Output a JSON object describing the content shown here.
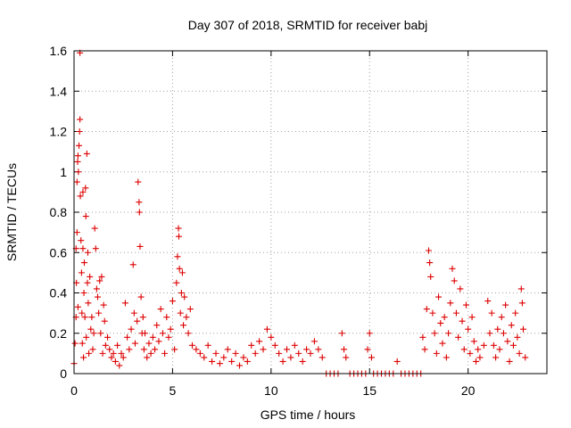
{
  "chart_data": {
    "type": "scatter",
    "title": "Day 307 of 2018, SRMTID for receiver babj",
    "xlabel": "GPS time / hours",
    "ylabel": "SRMTID / TECUs",
    "xlim": [
      0,
      24
    ],
    "ylim": [
      0,
      1.6
    ],
    "xticks": [
      0,
      5,
      10,
      15,
      20
    ],
    "xtick_labels": [
      "0",
      "5",
      "10",
      "15",
      "20"
    ],
    "yticks": [
      0,
      0.2,
      0.4,
      0.6,
      0.8,
      1,
      1.2,
      1.4,
      1.6
    ],
    "ytick_labels": [
      "0",
      "0.2",
      "0.4",
      "0.6",
      "0.8",
      "1",
      "1.2",
      "1.4",
      "1.6"
    ],
    "grid": true,
    "marker": "+",
    "color": "#dd0000",
    "series": [
      {
        "name": "SRMTID",
        "points": [
          [
            0.0,
            0.05
          ],
          [
            0.05,
            0.15
          ],
          [
            0.1,
            0.28
          ],
          [
            0.1,
            0.62
          ],
          [
            0.12,
            0.45
          ],
          [
            0.15,
            0.95
          ],
          [
            0.15,
            0.7
          ],
          [
            0.18,
            1.05
          ],
          [
            0.2,
            1.08
          ],
          [
            0.2,
            0.33
          ],
          [
            0.22,
            1.0
          ],
          [
            0.25,
            1.13
          ],
          [
            0.28,
            1.2
          ],
          [
            0.3,
            1.26
          ],
          [
            0.3,
            1.59
          ],
          [
            0.32,
            0.88
          ],
          [
            0.35,
            0.66
          ],
          [
            0.38,
            0.5
          ],
          [
            0.4,
            0.3
          ],
          [
            0.42,
            0.15
          ],
          [
            0.45,
            0.9
          ],
          [
            0.45,
            0.62
          ],
          [
            0.48,
            0.08
          ],
          [
            0.5,
            0.4
          ],
          [
            0.52,
            0.55
          ],
          [
            0.55,
            0.28
          ],
          [
            0.58,
            0.92
          ],
          [
            0.6,
            0.78
          ],
          [
            0.62,
            0.18
          ],
          [
            0.65,
            1.09
          ],
          [
            0.68,
            0.45
          ],
          [
            0.7,
            0.6
          ],
          [
            0.72,
            0.35
          ],
          [
            0.75,
            0.1
          ],
          [
            0.8,
            0.48
          ],
          [
            0.85,
            0.22
          ],
          [
            0.9,
            0.28
          ],
          [
            0.95,
            0.12
          ],
          [
            1.0,
            0.2
          ],
          [
            1.05,
            0.72
          ],
          [
            1.1,
            0.62
          ],
          [
            1.15,
            0.42
          ],
          [
            1.2,
            0.38
          ],
          [
            1.25,
            0.3
          ],
          [
            1.3,
            0.46
          ],
          [
            1.35,
            0.2
          ],
          [
            1.4,
            0.48
          ],
          [
            1.45,
            0.1
          ],
          [
            1.5,
            0.34
          ],
          [
            1.55,
            0.26
          ],
          [
            1.6,
            0.14
          ],
          [
            1.7,
            0.18
          ],
          [
            1.8,
            0.12
          ],
          [
            1.9,
            0.08
          ],
          [
            2.0,
            0.1
          ],
          [
            2.1,
            0.06
          ],
          [
            2.2,
            0.14
          ],
          [
            2.3,
            0.04
          ],
          [
            2.4,
            0.1
          ],
          [
            2.5,
            0.08
          ],
          [
            2.6,
            0.35
          ],
          [
            2.7,
            0.18
          ],
          [
            2.8,
            0.12
          ],
          [
            2.9,
            0.22
          ],
          [
            3.0,
            0.54
          ],
          [
            3.05,
            0.3
          ],
          [
            3.1,
            0.15
          ],
          [
            3.2,
            0.26
          ],
          [
            3.25,
            0.95
          ],
          [
            3.3,
            0.85
          ],
          [
            3.32,
            0.8
          ],
          [
            3.35,
            0.63
          ],
          [
            3.4,
            0.38
          ],
          [
            3.45,
            0.2
          ],
          [
            3.5,
            0.28
          ],
          [
            3.55,
            0.12
          ],
          [
            3.6,
            0.2
          ],
          [
            3.7,
            0.08
          ],
          [
            3.8,
            0.15
          ],
          [
            3.9,
            0.1
          ],
          [
            4.0,
            0.18
          ],
          [
            4.1,
            0.12
          ],
          [
            4.2,
            0.24
          ],
          [
            4.3,
            0.16
          ],
          [
            4.4,
            0.32
          ],
          [
            4.5,
            0.2
          ],
          [
            4.6,
            0.1
          ],
          [
            4.7,
            0.28
          ],
          [
            4.8,
            0.18
          ],
          [
            4.9,
            0.22
          ],
          [
            5.0,
            0.36
          ],
          [
            5.1,
            0.12
          ],
          [
            5.2,
            0.45
          ],
          [
            5.25,
            0.58
          ],
          [
            5.3,
            0.72
          ],
          [
            5.32,
            0.68
          ],
          [
            5.35,
            0.52
          ],
          [
            5.4,
            0.3
          ],
          [
            5.45,
            0.4
          ],
          [
            5.5,
            0.5
          ],
          [
            5.55,
            0.24
          ],
          [
            5.6,
            0.38
          ],
          [
            5.7,
            0.28
          ],
          [
            5.8,
            0.2
          ],
          [
            5.9,
            0.32
          ],
          [
            6.0,
            0.14
          ],
          [
            6.2,
            0.12
          ],
          [
            6.4,
            0.1
          ],
          [
            6.6,
            0.08
          ],
          [
            6.8,
            0.14
          ],
          [
            7.0,
            0.06
          ],
          [
            7.2,
            0.1
          ],
          [
            7.4,
            0.05
          ],
          [
            7.6,
            0.08
          ],
          [
            7.8,
            0.12
          ],
          [
            8.0,
            0.06
          ],
          [
            8.2,
            0.1
          ],
          [
            8.4,
            0.04
          ],
          [
            8.6,
            0.08
          ],
          [
            8.8,
            0.06
          ],
          [
            9.0,
            0.14
          ],
          [
            9.2,
            0.1
          ],
          [
            9.4,
            0.16
          ],
          [
            9.6,
            0.12
          ],
          [
            9.8,
            0.22
          ],
          [
            10.0,
            0.18
          ],
          [
            10.2,
            0.14
          ],
          [
            10.4,
            0.1
          ],
          [
            10.6,
            0.06
          ],
          [
            10.8,
            0.12
          ],
          [
            11.0,
            0.08
          ],
          [
            11.2,
            0.14
          ],
          [
            11.4,
            0.1
          ],
          [
            11.6,
            0.06
          ],
          [
            11.8,
            0.12
          ],
          [
            12.0,
            0.1
          ],
          [
            12.2,
            0.16
          ],
          [
            12.4,
            0.12
          ],
          [
            12.6,
            0.08
          ],
          [
            12.8,
            0.0
          ],
          [
            13.0,
            0.0
          ],
          [
            13.2,
            0.0
          ],
          [
            13.4,
            0.0
          ],
          [
            13.6,
            0.2
          ],
          [
            13.7,
            0.12
          ],
          [
            13.8,
            0.08
          ],
          [
            14.0,
            0.0
          ],
          [
            14.2,
            0.0
          ],
          [
            14.4,
            0.0
          ],
          [
            14.6,
            0.0
          ],
          [
            14.8,
            0.0
          ],
          [
            14.9,
            0.12
          ],
          [
            15.0,
            0.2
          ],
          [
            15.1,
            0.08
          ],
          [
            15.2,
            0.0
          ],
          [
            15.4,
            0.0
          ],
          [
            15.6,
            0.0
          ],
          [
            15.8,
            0.0
          ],
          [
            16.0,
            0.0
          ],
          [
            16.2,
            0.0
          ],
          [
            16.4,
            0.06
          ],
          [
            16.6,
            0.0
          ],
          [
            16.8,
            0.0
          ],
          [
            17.0,
            0.0
          ],
          [
            17.2,
            0.0
          ],
          [
            17.4,
            0.0
          ],
          [
            17.6,
            0.0
          ],
          [
            17.7,
            0.18
          ],
          [
            17.8,
            0.12
          ],
          [
            17.9,
            0.32
          ],
          [
            18.0,
            0.61
          ],
          [
            18.05,
            0.55
          ],
          [
            18.1,
            0.48
          ],
          [
            18.2,
            0.3
          ],
          [
            18.3,
            0.2
          ],
          [
            18.4,
            0.1
          ],
          [
            18.5,
            0.38
          ],
          [
            18.6,
            0.25
          ],
          [
            18.7,
            0.15
          ],
          [
            18.8,
            0.28
          ],
          [
            18.9,
            0.08
          ],
          [
            19.0,
            0.2
          ],
          [
            19.1,
            0.35
          ],
          [
            19.2,
            0.52
          ],
          [
            19.3,
            0.46
          ],
          [
            19.4,
            0.3
          ],
          [
            19.5,
            0.18
          ],
          [
            19.6,
            0.42
          ],
          [
            19.7,
            0.26
          ],
          [
            19.8,
            0.12
          ],
          [
            19.9,
            0.34
          ],
          [
            20.0,
            0.22
          ],
          [
            20.1,
            0.1
          ],
          [
            20.2,
            0.28
          ],
          [
            20.3,
            0.16
          ],
          [
            20.4,
            0.06
          ],
          [
            20.5,
            0.12
          ],
          [
            20.6,
            0.08
          ],
          [
            20.8,
            0.14
          ],
          [
            21.0,
            0.36
          ],
          [
            21.1,
            0.2
          ],
          [
            21.2,
            0.3
          ],
          [
            21.3,
            0.14
          ],
          [
            21.4,
            0.08
          ],
          [
            21.5,
            0.22
          ],
          [
            21.6,
            0.12
          ],
          [
            21.7,
            0.28
          ],
          [
            21.8,
            0.2
          ],
          [
            21.9,
            0.34
          ],
          [
            22.0,
            0.16
          ],
          [
            22.1,
            0.06
          ],
          [
            22.2,
            0.24
          ],
          [
            22.3,
            0.14
          ],
          [
            22.4,
            0.3
          ],
          [
            22.5,
            0.18
          ],
          [
            22.6,
            0.1
          ],
          [
            22.7,
            0.42
          ],
          [
            22.75,
            0.35
          ],
          [
            22.8,
            0.22
          ],
          [
            22.9,
            0.08
          ]
        ]
      }
    ]
  }
}
